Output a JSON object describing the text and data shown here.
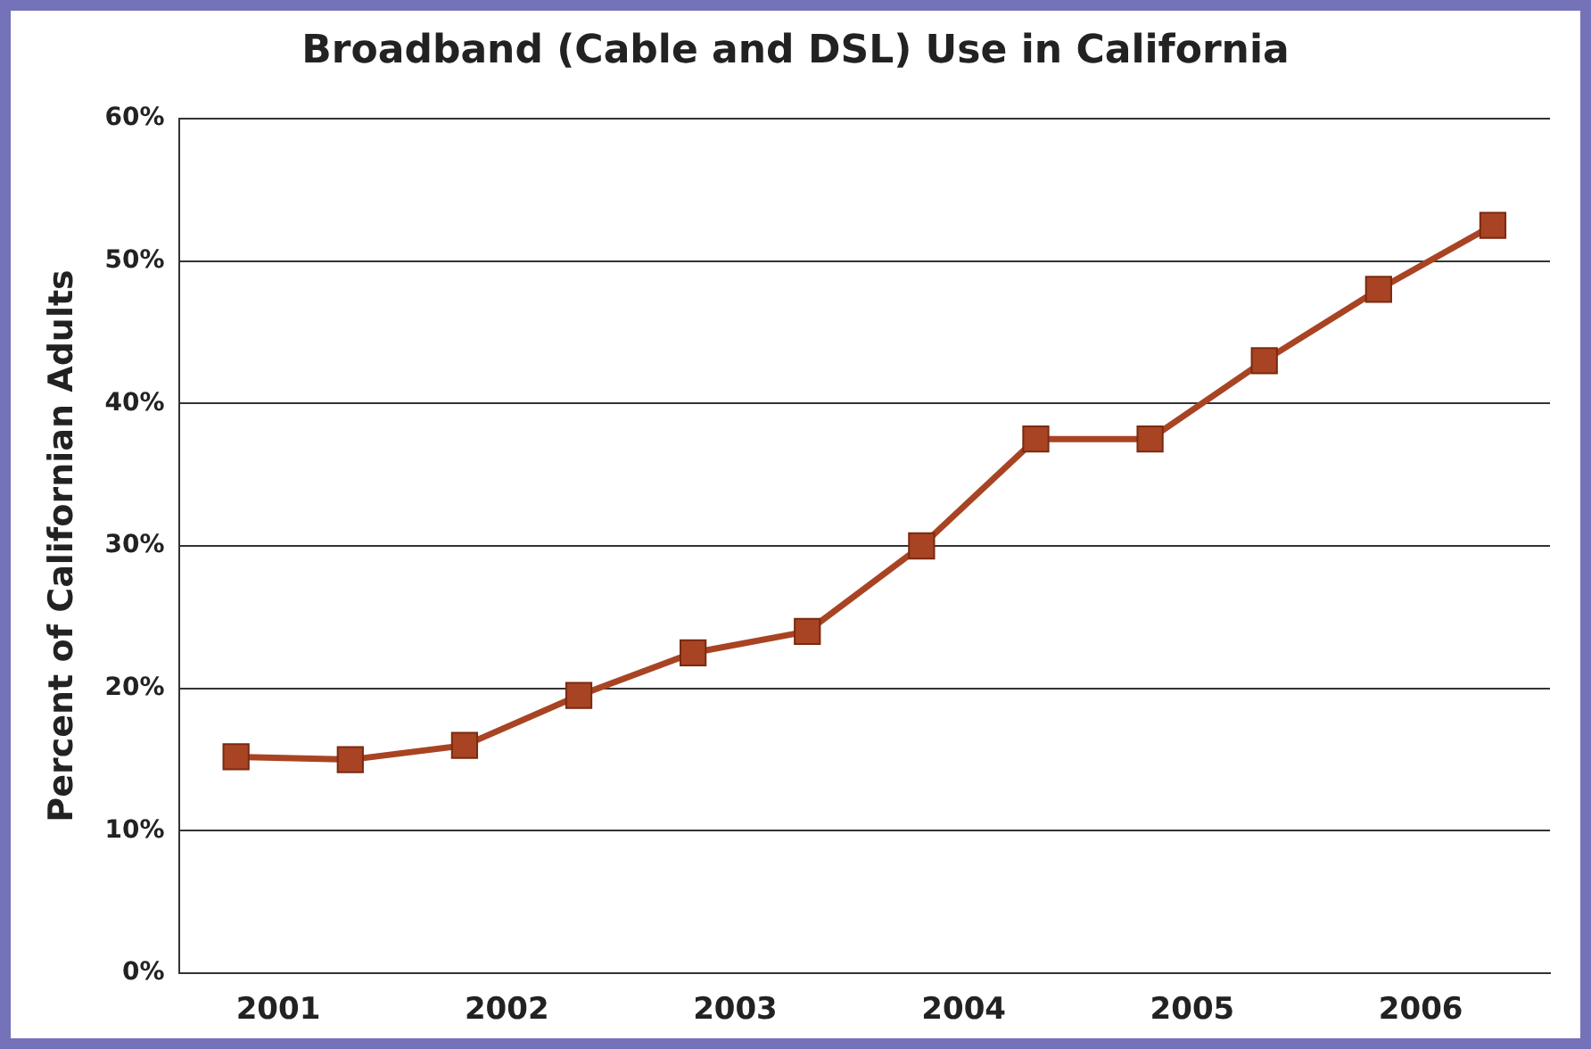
{
  "chart_data": {
    "type": "line",
    "title": "Broadband (Cable and DSL) Use in California",
    "ylabel": "Percent of Californian Adults",
    "categories": [
      "2001",
      null,
      "2002",
      null,
      "2003",
      null,
      "2004",
      null,
      "2005",
      null,
      "2006",
      null
    ],
    "series": [
      {
        "color": "#a84423",
        "values": [
          15.2,
          15,
          16,
          19.5,
          22.5,
          24,
          30,
          37.5,
          37.5,
          43,
          48,
          52.5
        ]
      }
    ],
    "ylim": [
      0,
      60
    ],
    "yticks": [
      {
        "value": 0,
        "label": "0%"
      },
      {
        "value": 10,
        "label": "10%"
      },
      {
        "value": 20,
        "label": "20%"
      },
      {
        "value": 30,
        "label": "30%"
      },
      {
        "value": 40,
        "label": "40%"
      },
      {
        "value": 50,
        "label": "50%"
      },
      {
        "value": 60,
        "label": "60%"
      }
    ],
    "grid": "y",
    "legend": false,
    "marker": "square",
    "line_style": "solid"
  }
}
